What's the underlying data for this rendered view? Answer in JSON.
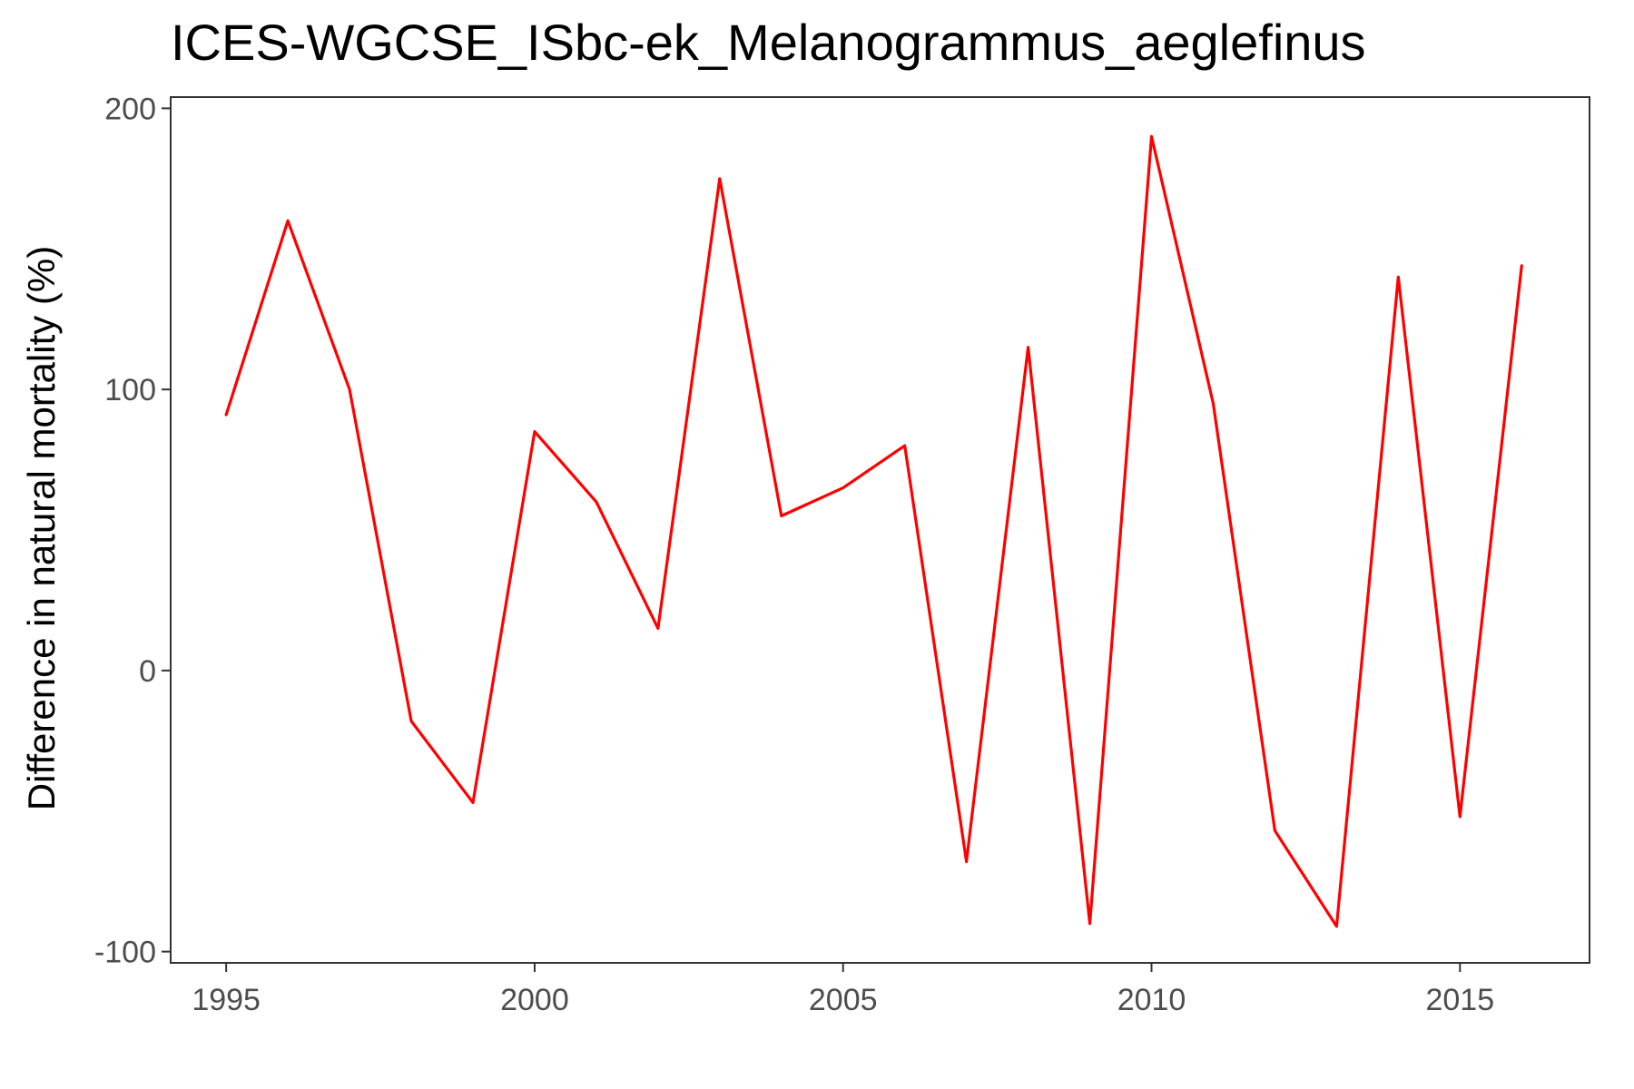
{
  "chart_data": {
    "type": "line",
    "title": "ICES-WGCSE_ISbc-ek_Melanogrammus_aeglefinus",
    "xlabel": "",
    "ylabel": "Difference in natural mortality (%)",
    "xlim": [
      1994.1,
      2017.1
    ],
    "ylim": [
      -104,
      204
    ],
    "x_ticks": [
      1995,
      2000,
      2005,
      2010,
      2015
    ],
    "x_tick_labels": [
      "1995",
      "2000",
      "2005",
      "2010",
      "2015"
    ],
    "y_ticks": [
      -100,
      0,
      100,
      200
    ],
    "y_tick_labels": [
      "-100",
      "0",
      "100",
      "200"
    ],
    "grid": false,
    "line_color": "#ff0000",
    "series": [
      {
        "x": [
          1995,
          1996,
          1997,
          1998,
          1999,
          2000,
          2001,
          2002,
          2003,
          2004,
          2005,
          2006,
          2007,
          2008,
          2009,
          2010,
          2011,
          2012,
          2013,
          2014,
          2015,
          2016
        ],
        "values": [
          91,
          160,
          100,
          -18,
          -47,
          85,
          60,
          15,
          175,
          55,
          65,
          80,
          -68,
          115,
          -90,
          190,
          95,
          -57,
          -91,
          140,
          -52,
          144
        ]
      }
    ]
  }
}
